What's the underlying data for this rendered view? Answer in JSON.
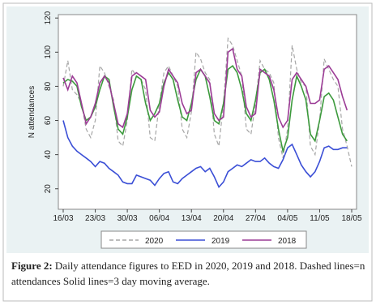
{
  "chart_data": {
    "type": "line",
    "y_label": "N attendances",
    "x": [
      "16/03",
      "17/03",
      "18/03",
      "19/03",
      "20/03",
      "21/03",
      "22/03",
      "23/03",
      "24/03",
      "25/03",
      "26/03",
      "27/03",
      "28/03",
      "29/03",
      "30/03",
      "31/03",
      "01/04",
      "02/04",
      "03/04",
      "04/04",
      "05/04",
      "06/04",
      "07/04",
      "08/04",
      "09/04",
      "10/04",
      "11/04",
      "12/04",
      "13/04",
      "14/04",
      "15/04",
      "16/04",
      "17/04",
      "18/04",
      "19/04",
      "20/04",
      "21/04",
      "22/04",
      "23/04",
      "24/04",
      "25/04",
      "26/04",
      "27/04",
      "28/04",
      "29/04",
      "30/04",
      "01/05",
      "02/05",
      "03/05",
      "04/05",
      "05/05",
      "06/05",
      "07/05",
      "08/05",
      "09/05",
      "10/05",
      "11/05",
      "12/05",
      "13/05",
      "14/05",
      "15/05",
      "16/05",
      "17/05",
      "18/05"
    ],
    "xlim": [
      "16/03",
      "18/05"
    ],
    "xticks": [
      "16/03",
      "23/03",
      "30/03",
      "06/04",
      "13/04",
      "20/04",
      "27/04",
      "04/05",
      "11/05",
      "18/05"
    ],
    "ylim": [
      8,
      122
    ],
    "yticks": [
      20,
      40,
      60,
      80,
      100,
      120
    ],
    "series": [
      {
        "name": "2020",
        "color": "#a6a6a6",
        "dashed": true,
        "values": [
          80,
          95,
          78,
          75,
          70,
          55,
          50,
          60,
          92,
          88,
          80,
          72,
          48,
          45,
          60,
          90,
          86,
          84,
          78,
          50,
          48,
          70,
          88,
          92,
          86,
          80,
          55,
          50,
          65,
          100,
          96,
          88,
          84,
          52,
          45,
          70,
          108,
          104,
          95,
          86,
          55,
          52,
          70,
          95,
          90,
          88,
          82,
          50,
          38,
          55,
          104,
          90,
          82,
          80,
          45,
          40,
          60,
          96,
          90,
          84,
          80,
          55,
          45,
          33
        ]
      },
      {
        "color": "#3c9a3c",
        "values": [
          82,
          84,
          83,
          80,
          68,
          60,
          62,
          68,
          78,
          86,
          84,
          68,
          55,
          52,
          62,
          78,
          86,
          84,
          70,
          60,
          64,
          70,
          82,
          88,
          84,
          72,
          62,
          60,
          70,
          84,
          90,
          86,
          74,
          60,
          58,
          70,
          90,
          92,
          88,
          78,
          64,
          60,
          72,
          88,
          90,
          84,
          72,
          55,
          42,
          50,
          72,
          86,
          80,
          72,
          52,
          48,
          60,
          74,
          76,
          72,
          62,
          52,
          48,
          null
        ]
      },
      {
        "name": "2019",
        "color": "#3b4fd6",
        "values": [
          60,
          50,
          45,
          42,
          40,
          38,
          36,
          33,
          36,
          35,
          32,
          30,
          28,
          24,
          23,
          23,
          28,
          27,
          26,
          25,
          22,
          26,
          29,
          30,
          24,
          23,
          26,
          28,
          30,
          32,
          33,
          30,
          32,
          27,
          21,
          24,
          30,
          32,
          34,
          33,
          35,
          37,
          36,
          36,
          38,
          35,
          33,
          32,
          37,
          44,
          46,
          40,
          34,
          30,
          27,
          30,
          36,
          44,
          45,
          43,
          43,
          44,
          44,
          null
        ]
      },
      {
        "name": "2018",
        "color": "#9c3c96",
        "values": [
          85,
          78,
          86,
          82,
          70,
          58,
          62,
          70,
          82,
          86,
          82,
          70,
          58,
          56,
          64,
          86,
          88,
          86,
          84,
          66,
          62,
          65,
          80,
          90,
          86,
          82,
          70,
          64,
          66,
          88,
          90,
          86,
          82,
          64,
          60,
          62,
          100,
          102,
          90,
          86,
          68,
          62,
          64,
          90,
          88,
          86,
          78,
          62,
          56,
          60,
          84,
          88,
          84,
          80,
          70,
          70,
          72,
          90,
          92,
          88,
          84,
          74,
          66,
          null
        ]
      }
    ],
    "caption_label": "Figure 2:",
    "caption_text": "Daily attendance figures to EED in 2020, 2019 and 2018. Dashed lines=n attendances Solid lines=3 day moving average."
  }
}
